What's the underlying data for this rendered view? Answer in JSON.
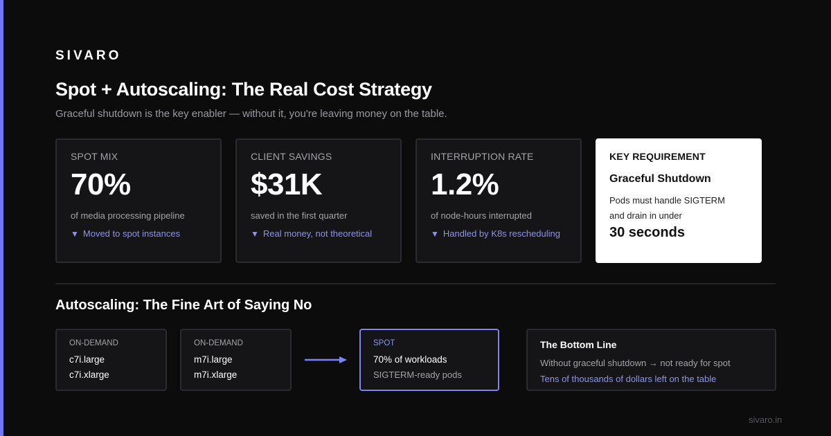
{
  "brand": "SIVARO",
  "title": "Spot + Autoscaling: The Real Cost Strategy",
  "subtitle": "Graceful shutdown is the key enabler — without it, you're leaving money on the table.",
  "metrics": [
    {
      "label": "SPOT MIX",
      "value": "70%",
      "description": "of media processing pipeline",
      "note": "Moved to spot instances"
    },
    {
      "label": "CLIENT SAVINGS",
      "value": "$31K",
      "description": "saved in the first quarter",
      "note": "Real money, not theoretical"
    },
    {
      "label": "INTERRUPTION RATE",
      "value": "1.2%",
      "description": "of node-hours interrupted",
      "note": "Handled by K8s rescheduling"
    }
  ],
  "requirement": {
    "label": "KEY REQUIREMENT",
    "heading": "Graceful Shutdown",
    "line1": "Pods must handle SIGTERM",
    "line2": "and drain in under",
    "emphasis": "30 seconds"
  },
  "section_title": "Autoscaling: The Fine Art of Saying No",
  "pools": [
    {
      "label": "ON-DEMAND",
      "line1": "c7i.large",
      "line2": "c7i.xlarge"
    },
    {
      "label": "ON-DEMAND",
      "line1": "m7i.large",
      "line2": "m7i.xlarge"
    }
  ],
  "spot": {
    "label": "SPOT",
    "line1": "70% of workloads",
    "line2": "SIGTERM-ready pods"
  },
  "bottom_line": {
    "heading": "The Bottom Line",
    "text": "Without graceful shutdown → not ready for spot",
    "note": "Tens of thousands of dollars left on the table"
  },
  "footer": "sivaro.in",
  "icons": {
    "note_marker": "triangle-down-icon",
    "flow": "arrow-right-icon"
  },
  "colors": {
    "accent": "#6f78ee",
    "accent_text": "#8c92f2",
    "background": "#0c0c0d",
    "card": "#151517"
  }
}
